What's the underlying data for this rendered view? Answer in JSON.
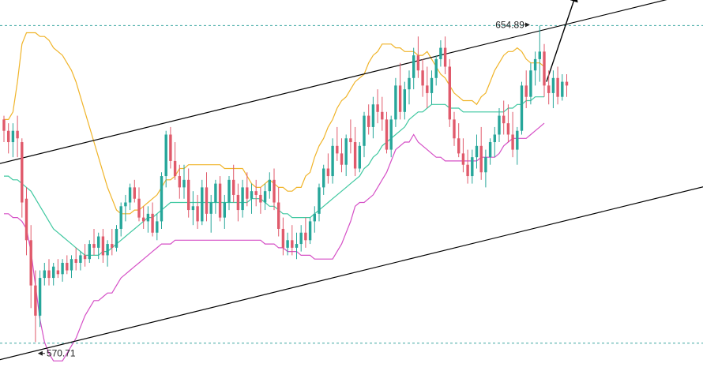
{
  "chart_data": {
    "type": "candlestick",
    "title": "",
    "xlabel": "",
    "ylabel": "",
    "ylim": [
      565,
      660
    ],
    "grid": false,
    "colors": {
      "up": "#26a69a",
      "down": "#e05a6b",
      "upper_band": "#f0b429",
      "middle_band": "#3fc8a0",
      "lower_band": "#d54fc6",
      "channel": "#000000",
      "level": "#3aa6a0"
    },
    "candles": [
      [
        630,
        631,
        624,
        627
      ],
      [
        627,
        629,
        621,
        624
      ],
      [
        624,
        629,
        620,
        627
      ],
      [
        627,
        631,
        620,
        625
      ],
      [
        624,
        625,
        604,
        608
      ],
      [
        609,
        612,
        594,
        598
      ],
      [
        598,
        602,
        580,
        586
      ],
      [
        586,
        590,
        571,
        578
      ],
      [
        578,
        590,
        575,
        588
      ],
      [
        588,
        592,
        586,
        590
      ],
      [
        590,
        593,
        586,
        588
      ],
      [
        588,
        592,
        586,
        591
      ],
      [
        590,
        593,
        588,
        589
      ],
      [
        589,
        593,
        587,
        592
      ],
      [
        592,
        594,
        589,
        590
      ],
      [
        590,
        594,
        588,
        593
      ],
      [
        593,
        596,
        590,
        592
      ],
      [
        592,
        595,
        590,
        594
      ],
      [
        594,
        597,
        591,
        593
      ],
      [
        593,
        598,
        592,
        597
      ],
      [
        597,
        601,
        594,
        596
      ],
      [
        596,
        600,
        593,
        599
      ],
      [
        599,
        601,
        592,
        594
      ],
      [
        594,
        598,
        591,
        597
      ],
      [
        597,
        601,
        594,
        596
      ],
      [
        596,
        602,
        595,
        601
      ],
      [
        601,
        608,
        599,
        607
      ],
      [
        607,
        610,
        603,
        608
      ],
      [
        608,
        613,
        606,
        612
      ],
      [
        612,
        614,
        608,
        609
      ],
      [
        609,
        612,
        603,
        604
      ],
      [
        604,
        607,
        601,
        603
      ],
      [
        603,
        607,
        600,
        605
      ],
      [
        605,
        608,
        599,
        600
      ],
      [
        600,
        605,
        598,
        603
      ],
      [
        603,
        616,
        601,
        615
      ],
      [
        615,
        627,
        612,
        626
      ],
      [
        626,
        628,
        617,
        619
      ],
      [
        619,
        624,
        614,
        615
      ],
      [
        615,
        618,
        609,
        612
      ],
      [
        612,
        618,
        609,
        614
      ],
      [
        614,
        617,
        604,
        606
      ],
      [
        606,
        611,
        602,
        607
      ],
      [
        607,
        610,
        601,
        603
      ],
      [
        603,
        614,
        602,
        612
      ],
      [
        612,
        616,
        603,
        605
      ],
      [
        605,
        610,
        600,
        608
      ],
      [
        608,
        614,
        605,
        613
      ],
      [
        613,
        615,
        603,
        604
      ],
      [
        604,
        610,
        601,
        608
      ],
      [
        608,
        615,
        606,
        614
      ],
      [
        614,
        618,
        608,
        610
      ],
      [
        610,
        613,
        603,
        606
      ],
      [
        606,
        614,
        604,
        612
      ],
      [
        612,
        616,
        607,
        609
      ],
      [
        609,
        613,
        605,
        611
      ],
      [
        611,
        614,
        607,
        610
      ],
      [
        610,
        612,
        605,
        608
      ],
      [
        608,
        613,
        606,
        611
      ],
      [
        611,
        616,
        609,
        614
      ],
      [
        614,
        617,
        606,
        608
      ],
      [
        608,
        612,
        599,
        601
      ],
      [
        601,
        604,
        594,
        596
      ],
      [
        596,
        600,
        594,
        598
      ],
      [
        598,
        602,
        594,
        596
      ],
      [
        596,
        600,
        593,
        597
      ],
      [
        597,
        602,
        595,
        600
      ],
      [
        600,
        604,
        596,
        598
      ],
      [
        598,
        604,
        597,
        603
      ],
      [
        603,
        607,
        600,
        605
      ],
      [
        605,
        613,
        603,
        612
      ],
      [
        612,
        618,
        610,
        617
      ],
      [
        617,
        621,
        613,
        615
      ],
      [
        615,
        625,
        613,
        623
      ],
      [
        623,
        628,
        619,
        621
      ],
      [
        621,
        625,
        616,
        618
      ],
      [
        618,
        626,
        615,
        625
      ],
      [
        625,
        630,
        621,
        624
      ],
      [
        624,
        628,
        615,
        617
      ],
      [
        617,
        624,
        616,
        623
      ],
      [
        623,
        632,
        620,
        631
      ],
      [
        631,
        634,
        626,
        628
      ],
      [
        628,
        636,
        625,
        634
      ],
      [
        634,
        638,
        629,
        632
      ],
      [
        632,
        636,
        627,
        630
      ],
      [
        630,
        632,
        621,
        622
      ],
      [
        622,
        631,
        620,
        630
      ],
      [
        630,
        641,
        628,
        639
      ],
      [
        639,
        645,
        630,
        632
      ],
      [
        632,
        640,
        630,
        638
      ],
      [
        638,
        643,
        634,
        641
      ],
      [
        641,
        649,
        638,
        647
      ],
      [
        647,
        652,
        641,
        643
      ],
      [
        643,
        646,
        636,
        639
      ],
      [
        639,
        644,
        633,
        637
      ],
      [
        637,
        643,
        634,
        641
      ],
      [
        641,
        647,
        639,
        646
      ],
      [
        646,
        651,
        644,
        649
      ],
      [
        649,
        652,
        642,
        644
      ],
      [
        644,
        646,
        628,
        630
      ],
      [
        630,
        632,
        623,
        625
      ],
      [
        625,
        629,
        620,
        621
      ],
      [
        621,
        625,
        616,
        618
      ],
      [
        618,
        622,
        613,
        615
      ],
      [
        615,
        622,
        613,
        620
      ],
      [
        620,
        626,
        617,
        623
      ],
      [
        623,
        628,
        614,
        616
      ],
      [
        616,
        622,
        612,
        620
      ],
      [
        620,
        625,
        618,
        624
      ],
      [
        624,
        628,
        620,
        626
      ],
      [
        626,
        633,
        624,
        631
      ],
      [
        631,
        635,
        626,
        629
      ],
      [
        629,
        634,
        624,
        626
      ],
      [
        626,
        632,
        620,
        622
      ],
      [
        622,
        628,
        618,
        627
      ],
      [
        627,
        640,
        626,
        639
      ],
      [
        639,
        643,
        633,
        636
      ],
      [
        636,
        645,
        634,
        643
      ],
      [
        643,
        648,
        639,
        646
      ],
      [
        646,
        654.89,
        640,
        648
      ],
      [
        648,
        650,
        636,
        639
      ],
      [
        639,
        643,
        634,
        637
      ],
      [
        637,
        643,
        633,
        641
      ],
      [
        641,
        644,
        634,
        636
      ],
      [
        636,
        642,
        635,
        640
      ],
      [
        640,
        642,
        636,
        639
      ]
    ],
    "upper_band": [
      630,
      630,
      632,
      640,
      650,
      653,
      653,
      653,
      652,
      652,
      651,
      649,
      648,
      647,
      645,
      643,
      640,
      636,
      632,
      628,
      624,
      620,
      616,
      612,
      609,
      606,
      605,
      605,
      605,
      606,
      606,
      607,
      608,
      609,
      610,
      612,
      614,
      614,
      615,
      617,
      617,
      618,
      618,
      618,
      618,
      618,
      618,
      618,
      618,
      617,
      617,
      617,
      617,
      617,
      615,
      613,
      612,
      612,
      613,
      614,
      613,
      612,
      612,
      611,
      611,
      612,
      612,
      615,
      616,
      620,
      623,
      625,
      628,
      630,
      633,
      635,
      636,
      638,
      640,
      641,
      642,
      645,
      647,
      648,
      650,
      650,
      650,
      649,
      649,
      648,
      648,
      648,
      647,
      647,
      648,
      646,
      644,
      642,
      641,
      639,
      637,
      636,
      635,
      635,
      635,
      634,
      636,
      637,
      640,
      643,
      645,
      647,
      648,
      648,
      649,
      648,
      646,
      645,
      645,
      645,
      644
    ],
    "middle_band": [
      615,
      615,
      614,
      614,
      613,
      612,
      611,
      609,
      607,
      605,
      603,
      601,
      600,
      599,
      598,
      597,
      596,
      595,
      594,
      594,
      594,
      594,
      595,
      595,
      596,
      597,
      598,
      599,
      600,
      601,
      602,
      603,
      604,
      604,
      605,
      606,
      607,
      608,
      608,
      608,
      608,
      608,
      608,
      608,
      608,
      608,
      608,
      608,
      608,
      608,
      608,
      608,
      608,
      608,
      608,
      609,
      609,
      609,
      608,
      607,
      607,
      606,
      605,
      605,
      604,
      604,
      604,
      604,
      604,
      605,
      606,
      607,
      608,
      609,
      610,
      611,
      612,
      613,
      614,
      615,
      617,
      618,
      620,
      621,
      623,
      624,
      625,
      626,
      627,
      628,
      630,
      631,
      632,
      632,
      633,
      634,
      634,
      634,
      634,
      633,
      633,
      633,
      632,
      632,
      632,
      632,
      632,
      632,
      632,
      632,
      632,
      632,
      633,
      633,
      634,
      634,
      635,
      635,
      636,
      636,
      636
    ],
    "lower_band": [
      605,
      605,
      604,
      604,
      603,
      601,
      595,
      586,
      577,
      571,
      568,
      566,
      566,
      566,
      568,
      570,
      572,
      575,
      578,
      580,
      582,
      582,
      583,
      584,
      584,
      586,
      588,
      589,
      590,
      591,
      592,
      593,
      594,
      595,
      596,
      597,
      597,
      597,
      598,
      598,
      598,
      598,
      598,
      598,
      598,
      598,
      598,
      598,
      598,
      598,
      598,
      598,
      598,
      598,
      598,
      598,
      598,
      598,
      597,
      597,
      597,
      596,
      596,
      595,
      595,
      595,
      594,
      594,
      594,
      593,
      593,
      593,
      593,
      593,
      595,
      597,
      600,
      603,
      607,
      608,
      608,
      609,
      610,
      612,
      614,
      616,
      619,
      622,
      623,
      624,
      624,
      626,
      624,
      623,
      622,
      621,
      620,
      620,
      619,
      619,
      619,
      619,
      619,
      619,
      619,
      619,
      620,
      620,
      620,
      620,
      621,
      623,
      624,
      625,
      625,
      625,
      625,
      626,
      627,
      628,
      629
    ],
    "channel_lines": [
      {
        "from": [
          -2,
          618
        ],
        "to": [
          165,
          667
        ]
      },
      {
        "from": [
          -2,
          566
        ],
        "to": [
          165,
          615
        ]
      }
    ],
    "levels": [
      {
        "value": 654.89,
        "label": "654.89",
        "index": 117
      },
      {
        "value": 570.71,
        "label": "570.71",
        "index": 7
      }
    ],
    "projection": {
      "from": [
        120.5,
        640
      ],
      "to": [
        127,
        663
      ]
    }
  }
}
